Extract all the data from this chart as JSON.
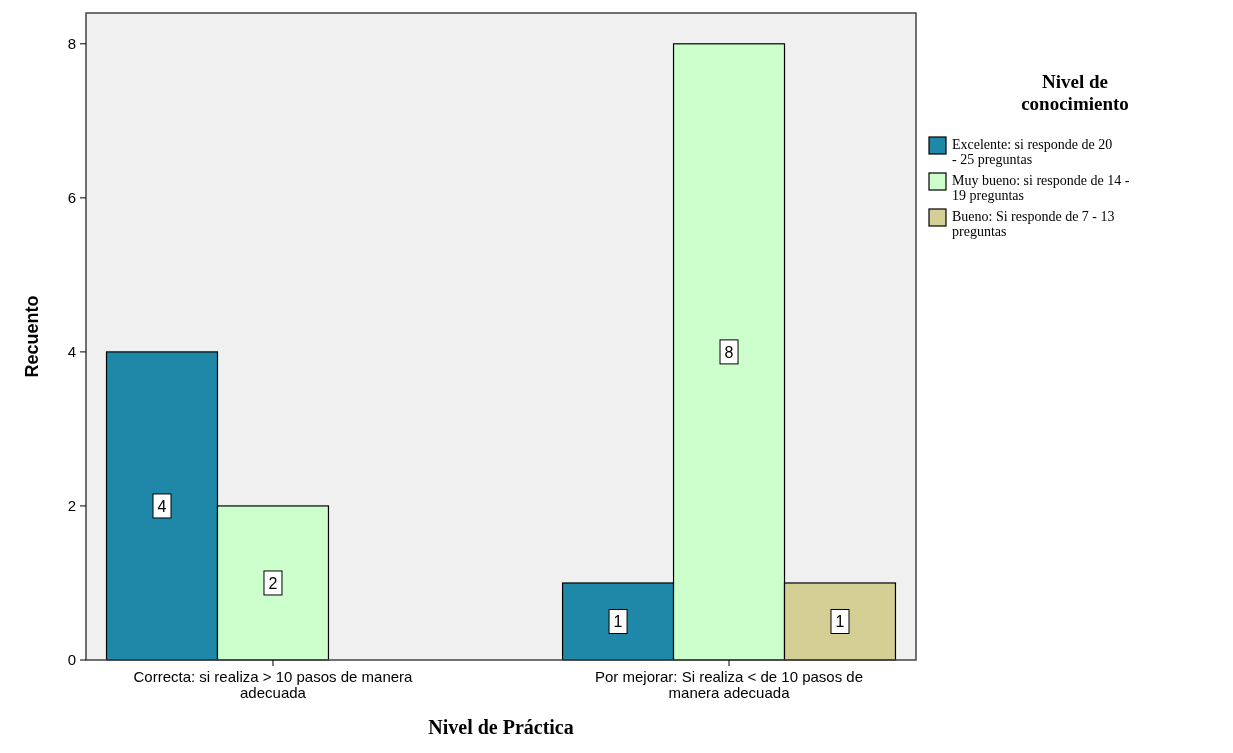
{
  "chart_data": {
    "type": "bar",
    "xlabel": "Nivel de Práctica",
    "ylabel": "Recuento",
    "legend_title": "Nivel de conocimiento",
    "categories": [
      "Correcta: si realiza > 10 pasos de manera adecuada",
      "Por mejorar: Si realiza < de 10 pasos de manera adecuada"
    ],
    "series": [
      {
        "name": "Excelente: si responde  de 20 - 25 preguntas",
        "color": "#1f88a8",
        "values": [
          4,
          1
        ]
      },
      {
        "name": "Muy bueno: si responde de 14 - 19 preguntas",
        "color": "#ccffcc",
        "values": [
          2,
          8
        ]
      },
      {
        "name": "Bueno: Si responde de 7 - 13 preguntas",
        "color": "#d4cf95",
        "values": [
          null,
          1
        ]
      }
    ],
    "ylim": [
      0,
      8.4
    ],
    "yticks": [
      0,
      2,
      4,
      6,
      8
    ],
    "grid": false,
    "legend": "right",
    "data_labels": true
  }
}
